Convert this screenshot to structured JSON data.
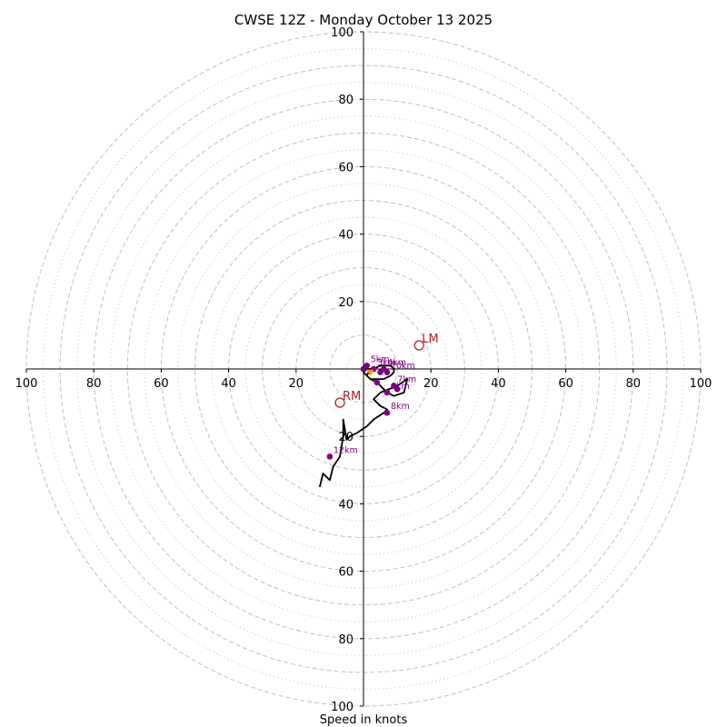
{
  "chart_data": {
    "type": "hodograph",
    "title": "CWSE 12Z - Monday October 13 2025",
    "xlabel": "Speed in knots",
    "units": "knots",
    "range": [
      -100,
      100
    ],
    "ring_labels": [
      "20",
      "40",
      "60",
      "80",
      "100"
    ],
    "x_tick_labels": [
      "100",
      "80",
      "60",
      "40",
      "20",
      "20",
      "40",
      "60",
      "80",
      "100"
    ],
    "y_tick_labels": [
      "100",
      "80",
      "60",
      "40",
      "20",
      "20",
      "40",
      "60",
      "80",
      "100"
    ],
    "major_rings": [
      10,
      20,
      30,
      40,
      50,
      60,
      70,
      80,
      90,
      100
    ],
    "minor_rings": [
      5,
      15,
      25,
      35,
      45,
      55,
      65,
      75,
      85,
      95
    ],
    "grid": true,
    "hodograph": {
      "u": [
        0,
        2,
        1,
        2,
        4,
        6,
        8,
        9,
        9,
        8,
        6,
        5,
        3,
        1,
        0,
        2,
        4,
        6,
        7,
        9,
        12,
        13,
        10,
        5,
        3,
        5,
        7,
        6,
        3,
        1,
        -2,
        -4,
        -5,
        -6,
        -6,
        -7,
        -9,
        -10,
        -12,
        -13
      ],
      "v": [
        0,
        0,
        -2,
        -3,
        -3,
        -3,
        -2,
        -1,
        0,
        1,
        1,
        1,
        0,
        0,
        -1,
        -3,
        -4,
        -6,
        -7,
        -8,
        -7,
        -3,
        -5,
        -7,
        -9,
        -11,
        -12,
        -13,
        -15,
        -17,
        -19,
        -20,
        -21,
        -15,
        -20,
        -26,
        -29,
        -33,
        -31,
        -35
      ]
    },
    "height_markers": [
      {
        "label": "3km",
        "u": 3,
        "v": 0
      },
      {
        "label": "4km",
        "u": 6,
        "v": 0
      },
      {
        "label": "5km",
        "u": 1,
        "v": 1
      },
      {
        "label": "6km",
        "u": 7,
        "v": -7
      },
      {
        "label": "7km",
        "u": 9,
        "v": -5
      },
      {
        "label": "8km",
        "u": 7,
        "v": -13
      },
      {
        "label": "10km",
        "u": 7,
        "v": -1
      },
      {
        "label": "12km",
        "u": -10,
        "v": -26
      },
      {
        "label": "",
        "u": 4,
        "v": -4
      },
      {
        "label": "",
        "u": 10,
        "v": -6
      },
      {
        "label": "",
        "u": 5,
        "v": -1
      },
      {
        "label": "",
        "u": 0,
        "v": 0
      }
    ],
    "storm_motion": [
      {
        "label": "LM",
        "u": 16.5,
        "v": 7
      },
      {
        "label": "RM",
        "u": -7,
        "v": -10
      }
    ],
    "mean_wind": {
      "u": 2,
      "v": -1
    },
    "colors": {
      "axis": "#000000",
      "grid": "#bfbfbf",
      "trace": "#000000",
      "markers": "#800080",
      "storm": "#b22222",
      "mean_wind": "#ff8c00"
    }
  }
}
